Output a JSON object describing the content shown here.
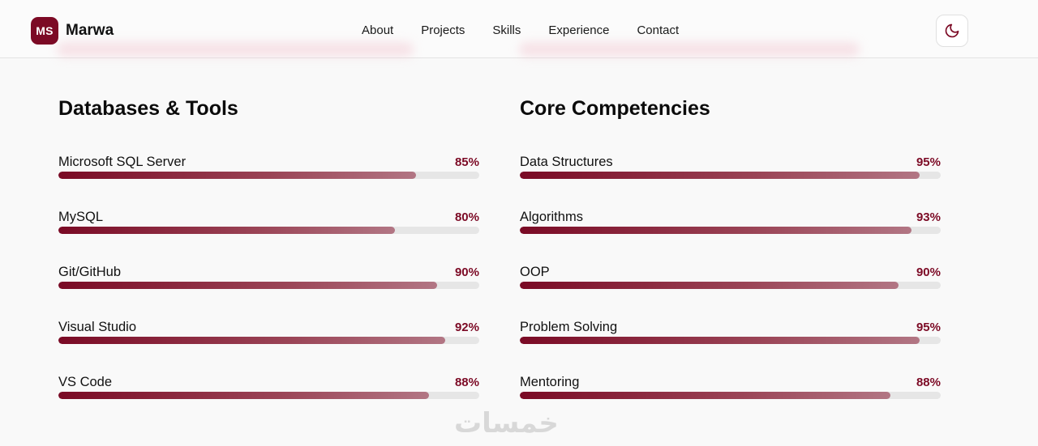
{
  "brand": {
    "initials": "MS",
    "name": "Marwa"
  },
  "nav": {
    "items": [
      "About",
      "Projects",
      "Skills",
      "Experience",
      "Contact"
    ]
  },
  "theme_toggle": {
    "icon": "moon-icon"
  },
  "sections": [
    {
      "title": "Databases & Tools",
      "skills": [
        {
          "name": "Microsoft SQL Server",
          "percent_label": "85%",
          "value": 85
        },
        {
          "name": "MySQL",
          "percent_label": "80%",
          "value": 80
        },
        {
          "name": "Git/GitHub",
          "percent_label": "90%",
          "value": 90
        },
        {
          "name": "Visual Studio",
          "percent_label": "92%",
          "value": 92
        },
        {
          "name": "VS Code",
          "percent_label": "88%",
          "value": 88
        }
      ]
    },
    {
      "title": "Core Competencies",
      "skills": [
        {
          "name": "Data Structures",
          "percent_label": "95%",
          "value": 95
        },
        {
          "name": "Algorithms",
          "percent_label": "93%",
          "value": 93
        },
        {
          "name": "OOP",
          "percent_label": "90%",
          "value": 90
        },
        {
          "name": "Problem Solving",
          "percent_label": "95%",
          "value": 95
        },
        {
          "name": "Mentoring",
          "percent_label": "88%",
          "value": 88
        }
      ]
    }
  ],
  "colors": {
    "accent": "#7c0a25",
    "track": "#e6e6e6"
  },
  "watermark": {
    "text": "خمسات"
  }
}
